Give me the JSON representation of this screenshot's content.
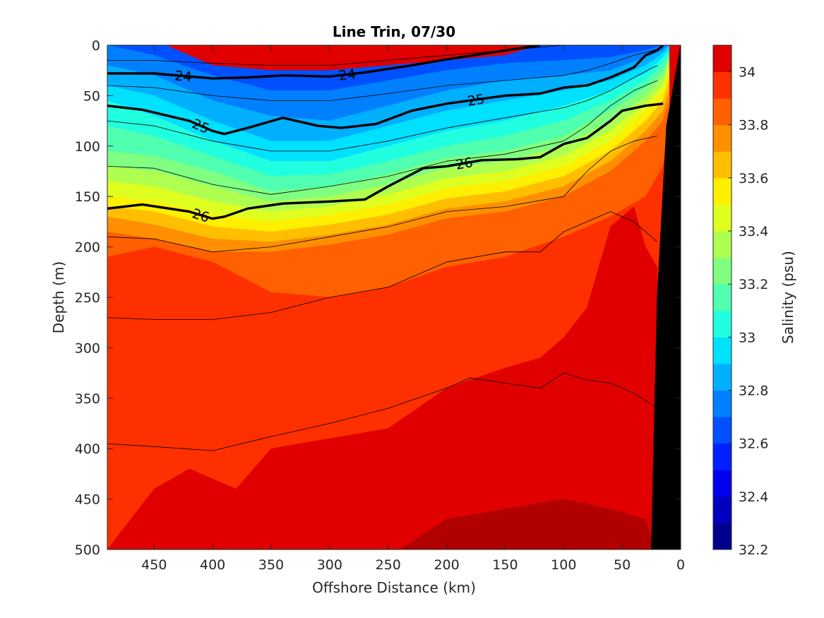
{
  "chart_data": {
    "type": "heatmap",
    "subtype": "filled-contour-section",
    "title": "Line Trin, 07/30",
    "xlabel": "Offshore Distance (km)",
    "ylabel": "Depth (m)",
    "xlim": [
      490,
      0
    ],
    "x_reversed": true,
    "ylim": [
      0,
      500
    ],
    "y_reversed": true,
    "x_ticks": [
      450,
      400,
      350,
      300,
      250,
      200,
      150,
      100,
      50,
      0
    ],
    "y_ticks": [
      0,
      50,
      100,
      150,
      200,
      250,
      300,
      350,
      400,
      450,
      500
    ],
    "colorbar": {
      "label": "Salinity (psu)",
      "ticks": [
        32.2,
        32.4,
        32.6,
        32.8,
        33,
        33.2,
        33.4,
        33.6,
        33.8,
        34
      ],
      "tick_labels": [
        "32.2",
        "32.4",
        "32.6",
        "32.8",
        "33",
        "33.2",
        "33.4",
        "33.6",
        "33.8",
        "34"
      ],
      "range": [
        32.2,
        34.1
      ],
      "levels": [
        {
          "min": 32.2,
          "max": 32.3,
          "color": "#00008f"
        },
        {
          "min": 32.3,
          "max": 32.4,
          "color": "#0000bf"
        },
        {
          "min": 32.4,
          "max": 32.5,
          "color": "#0000ef"
        },
        {
          "min": 32.5,
          "max": 32.6,
          "color": "#0020ff"
        },
        {
          "min": 32.6,
          "max": 32.7,
          "color": "#0050ff"
        },
        {
          "min": 32.7,
          "max": 32.8,
          "color": "#0080ff"
        },
        {
          "min": 32.8,
          "max": 32.9,
          "color": "#00b0ff"
        },
        {
          "min": 32.9,
          "max": 33.0,
          "color": "#00e0ff"
        },
        {
          "min": 33.0,
          "max": 33.1,
          "color": "#20ffdf"
        },
        {
          "min": 33.1,
          "max": 33.2,
          "color": "#50ffaf"
        },
        {
          "min": 33.2,
          "max": 33.3,
          "color": "#80ff80"
        },
        {
          "min": 33.3,
          "max": 33.4,
          "color": "#afff50"
        },
        {
          "min": 33.4,
          "max": 33.5,
          "color": "#dfff20"
        },
        {
          "min": 33.5,
          "max": 33.6,
          "color": "#ffef00"
        },
        {
          "min": 33.6,
          "max": 33.7,
          "color": "#ffbf00"
        },
        {
          "min": 33.7,
          "max": 33.8,
          "color": "#ff8f00"
        },
        {
          "min": 33.8,
          "max": 33.9,
          "color": "#ff6000"
        },
        {
          "min": 33.9,
          "max": 34.0,
          "color": "#ff3000"
        },
        {
          "min": 34.0,
          "max": 34.1,
          "color": "#e00000"
        },
        {
          "min": 34.1,
          "max": 34.2,
          "color": "#b00000"
        }
      ]
    },
    "bathymetry_color": "#000000",
    "bathymetry": [
      {
        "x": 0,
        "depth": 0
      },
      {
        "x": 12,
        "depth": 80
      },
      {
        "x": 20,
        "depth": 250
      },
      {
        "x": 25,
        "depth": 500
      },
      {
        "x": 0,
        "depth": 500
      }
    ],
    "salinity_layers": [
      {
        "name": "",
        "color": "#0050ff",
        "x": [
          490,
          440,
          400,
          350,
          300,
          250,
          200,
          150,
          120,
          100,
          80,
          60,
          40,
          20,
          10
        ],
        "depth": [
          0,
          0,
          20,
          25,
          25,
          20,
          15,
          10,
          0,
          0,
          0,
          0,
          0,
          0,
          0
        ]
      },
      {
        "name": "",
        "color": "#0080ff",
        "x": [
          490,
          450,
          400,
          350,
          300,
          250,
          200,
          150,
          100,
          60,
          30,
          15,
          10
        ],
        "depth": [
          0,
          10,
          30,
          45,
          45,
          35,
          25,
          18,
          15,
          12,
          5,
          0,
          0
        ]
      },
      {
        "name": "",
        "color": "#00b0ff",
        "x": [
          490,
          450,
          400,
          350,
          300,
          250,
          200,
          150,
          100,
          60,
          30,
          15,
          10
        ],
        "depth": [
          20,
          30,
          55,
          70,
          75,
          60,
          45,
          35,
          30,
          25,
          12,
          5,
          0
        ]
      },
      {
        "name": "",
        "color": "#00e0ff",
        "x": [
          490,
          450,
          400,
          350,
          300,
          250,
          200,
          150,
          100,
          60,
          30,
          15,
          10
        ],
        "depth": [
          40,
          50,
          75,
          95,
          95,
          80,
          65,
          55,
          45,
          35,
          20,
          8,
          0
        ]
      },
      {
        "name": "",
        "color": "#20ffdf",
        "x": [
          490,
          450,
          400,
          350,
          300,
          250,
          200,
          150,
          100,
          60,
          30,
          15,
          10
        ],
        "depth": [
          55,
          70,
          95,
          115,
          115,
          100,
          85,
          75,
          60,
          45,
          28,
          12,
          5
        ]
      },
      {
        "name": "",
        "color": "#50ffaf",
        "x": [
          490,
          450,
          400,
          350,
          300,
          250,
          200,
          150,
          100,
          60,
          30,
          15,
          10
        ],
        "depth": [
          80,
          90,
          110,
          130,
          128,
          115,
          100,
          90,
          75,
          55,
          35,
          18,
          8
        ]
      },
      {
        "name": "",
        "color": "#80ff80",
        "x": [
          490,
          450,
          400,
          350,
          300,
          250,
          200,
          150,
          100,
          60,
          30,
          15,
          10
        ],
        "depth": [
          105,
          110,
          125,
          145,
          140,
          128,
          112,
          105,
          90,
          65,
          42,
          25,
          12
        ]
      },
      {
        "name": "",
        "color": "#afff50",
        "x": [
          490,
          450,
          400,
          350,
          300,
          250,
          200,
          150,
          100,
          60,
          30,
          15,
          10
        ],
        "depth": [
          120,
          125,
          140,
          155,
          150,
          138,
          122,
          115,
          100,
          75,
          50,
          32,
          15
        ]
      },
      {
        "name": "",
        "color": "#dfff20",
        "x": [
          490,
          450,
          400,
          350,
          300,
          250,
          200,
          150,
          100,
          60,
          30,
          15,
          10
        ],
        "depth": [
          135,
          140,
          155,
          165,
          160,
          148,
          132,
          125,
          110,
          85,
          58,
          40,
          20
        ]
      },
      {
        "name": "",
        "color": "#ffef00",
        "x": [
          490,
          450,
          400,
          350,
          300,
          250,
          200,
          150,
          100,
          60,
          30,
          15,
          10
        ],
        "depth": [
          150,
          155,
          168,
          175,
          168,
          158,
          142,
          135,
          120,
          95,
          65,
          45,
          25
        ]
      },
      {
        "name": "",
        "color": "#ffbf00",
        "x": [
          490,
          450,
          400,
          350,
          300,
          250,
          200,
          150,
          100,
          60,
          30,
          15,
          10
        ],
        "depth": [
          160,
          165,
          180,
          185,
          178,
          168,
          152,
          145,
          130,
          105,
          75,
          55,
          35
        ]
      },
      {
        "name": "",
        "color": "#ff8f00",
        "x": [
          490,
          450,
          400,
          350,
          300,
          250,
          200,
          150,
          100,
          60,
          30,
          15,
          10
        ],
        "depth": [
          170,
          178,
          192,
          195,
          188,
          178,
          162,
          155,
          140,
          115,
          85,
          65,
          45
        ]
      },
      {
        "name": "",
        "color": "#ff6000",
        "x": [
          490,
          450,
          400,
          350,
          300,
          250,
          200,
          150,
          100,
          60,
          30,
          15,
          10
        ],
        "depth": [
          185,
          192,
          205,
          205,
          198,
          188,
          172,
          165,
          150,
          125,
          95,
          75,
          55
        ]
      },
      {
        "name": "",
        "color": "#ff3000",
        "x": [
          490,
          450,
          400,
          350,
          300,
          250,
          200,
          150,
          100,
          60,
          30,
          15,
          10
        ],
        "depth": [
          210,
          200,
          215,
          245,
          250,
          240,
          220,
          210,
          190,
          170,
          150,
          120,
          80
        ]
      },
      {
        "name": "",
        "color": "#e00000",
        "x": [
          490,
          450,
          420,
          400,
          380,
          350,
          300,
          250,
          200,
          150,
          120,
          100,
          80,
          60,
          40,
          30,
          20
        ],
        "depth": [
          500,
          440,
          420,
          430,
          440,
          400,
          390,
          380,
          340,
          320,
          310,
          290,
          260,
          180,
          160,
          200,
          220
        ]
      },
      {
        "name": "",
        "color": "#b00000",
        "x": [
          240,
          200,
          150,
          100,
          60,
          30,
          25
        ],
        "depth": [
          500,
          470,
          460,
          450,
          460,
          470,
          490
        ]
      }
    ],
    "density_contours": [
      {
        "label": "24",
        "emphasis": "bold",
        "x": [
          490,
          450,
          400,
          370,
          340,
          300,
          270,
          230,
          200,
          160,
          120
        ],
        "depth": [
          28,
          28,
          33,
          32,
          30,
          31,
          27,
          20,
          14,
          7,
          0
        ]
      },
      {
        "label": "25",
        "emphasis": "bold",
        "x": [
          490,
          460,
          420,
          400,
          390,
          370,
          340,
          310,
          290,
          260,
          230,
          200,
          150,
          120,
          100,
          80,
          60,
          40,
          30,
          20,
          15
        ],
        "depth": [
          60,
          64,
          75,
          85,
          88,
          82,
          72,
          80,
          82,
          78,
          65,
          58,
          50,
          48,
          42,
          40,
          32,
          22,
          10,
          5,
          0
        ]
      },
      {
        "label": "26",
        "emphasis": "bold",
        "x": [
          490,
          460,
          420,
          400,
          390,
          370,
          340,
          300,
          270,
          250,
          220,
          200,
          170,
          140,
          120,
          100,
          80,
          60,
          50,
          30,
          15
        ],
        "depth": [
          162,
          158,
          165,
          172,
          170,
          162,
          157,
          155,
          153,
          140,
          122,
          120,
          114,
          113,
          111,
          98,
          92,
          75,
          65,
          60,
          58
        ]
      },
      {
        "label": "",
        "emphasis": "thin",
        "x": [
          490,
          450,
          400,
          350,
          300,
          250,
          200,
          150,
          120,
          100,
          80,
          60,
          40,
          20,
          10
        ],
        "depth": [
          15,
          15,
          18,
          20,
          20,
          15,
          10,
          5,
          2,
          0,
          0,
          0,
          0,
          0,
          0
        ]
      },
      {
        "label": "",
        "emphasis": "thin",
        "x": [
          490,
          450,
          400,
          350,
          300,
          250,
          200,
          150,
          100,
          80,
          60,
          40,
          20
        ],
        "depth": [
          40,
          42,
          50,
          55,
          55,
          48,
          40,
          35,
          30,
          25,
          18,
          10,
          4
        ]
      },
      {
        "label": "",
        "emphasis": "thin",
        "x": [
          490,
          450,
          400,
          350,
          300,
          250,
          200,
          150,
          100,
          80,
          60,
          40,
          20
        ],
        "depth": [
          75,
          80,
          95,
          105,
          105,
          95,
          82,
          72,
          62,
          55,
          45,
          32,
          20
        ]
      },
      {
        "label": "",
        "emphasis": "thin",
        "x": [
          490,
          450,
          400,
          350,
          300,
          250,
          200,
          150,
          100,
          80,
          60,
          40,
          20
        ],
        "depth": [
          120,
          122,
          138,
          148,
          140,
          130,
          115,
          108,
          95,
          80,
          60,
          45,
          35
        ]
      },
      {
        "label": "",
        "emphasis": "thin",
        "x": [
          490,
          450,
          400,
          350,
          300,
          250,
          200,
          150,
          100,
          80,
          60,
          40,
          20
        ],
        "depth": [
          190,
          192,
          205,
          200,
          190,
          180,
          165,
          160,
          150,
          125,
          105,
          95,
          90
        ]
      },
      {
        "label": "",
        "emphasis": "thin",
        "x": [
          490,
          450,
          400,
          350,
          300,
          250,
          200,
          150,
          120,
          100,
          80,
          60,
          40,
          20
        ],
        "depth": [
          270,
          272,
          272,
          265,
          250,
          240,
          215,
          205,
          205,
          185,
          175,
          165,
          175,
          195
        ]
      },
      {
        "label": "",
        "emphasis": "thin",
        "x": [
          490,
          450,
          400,
          350,
          300,
          250,
          200,
          180,
          150,
          120,
          100,
          80,
          60,
          40,
          20
        ],
        "depth": [
          395,
          398,
          402,
          388,
          375,
          360,
          340,
          330,
          335,
          340,
          325,
          332,
          335,
          345,
          360
        ]
      }
    ]
  }
}
